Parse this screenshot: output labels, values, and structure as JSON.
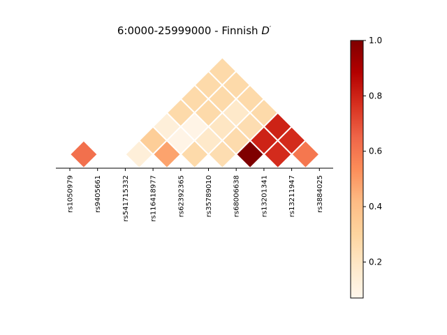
{
  "chart_data": {
    "type": "heatmap",
    "title": "6:0000-25999000 - Finnish D′",
    "title_prefix": "6:0000-25999000 - Finnish ",
    "title_symbol": "D",
    "title_prime": "′",
    "snps": [
      "rs1050979",
      "rs9405661",
      "rs541715332",
      "rs116418977",
      "rs62392365",
      "rs35789010",
      "rs68006638",
      "rs13201341",
      "rs13211947",
      "rs3884025"
    ],
    "colorbar": {
      "min": 0.07,
      "max": 1.0,
      "ticks": [
        0.2,
        0.4,
        0.6,
        0.8,
        1.0
      ],
      "tick_labels": [
        "0.2",
        "0.4",
        "0.6",
        "0.8",
        "1.0"
      ],
      "cmap": "OrRd"
    },
    "missing_value_meaning": "blank cells are not drawn",
    "matrix": [
      [
        null,
        0.62,
        null,
        null,
        null,
        null,
        null,
        null,
        null,
        null
      ],
      [
        null,
        null,
        null,
        null,
        null,
        null,
        null,
        null,
        null,
        null
      ],
      [
        null,
        null,
        null,
        0.13,
        0.33,
        0.13,
        0.27,
        0.27,
        0.27,
        0.27
      ],
      [
        null,
        null,
        null,
        null,
        0.48,
        0.09,
        0.09,
        0.27,
        0.27,
        0.27
      ],
      [
        null,
        null,
        null,
        null,
        null,
        0.27,
        0.18,
        0.2,
        0.18,
        0.27
      ],
      [
        null,
        null,
        null,
        null,
        null,
        null,
        0.25,
        0.26,
        0.25,
        0.27
      ],
      [
        null,
        null,
        null,
        null,
        null,
        null,
        null,
        1.0,
        0.8,
        0.8
      ],
      [
        null,
        null,
        null,
        null,
        null,
        null,
        null,
        null,
        0.78,
        0.78
      ],
      [
        null,
        null,
        null,
        null,
        null,
        null,
        null,
        null,
        null,
        0.6
      ],
      [
        null,
        null,
        null,
        null,
        null,
        null,
        null,
        null,
        null,
        null
      ]
    ]
  }
}
